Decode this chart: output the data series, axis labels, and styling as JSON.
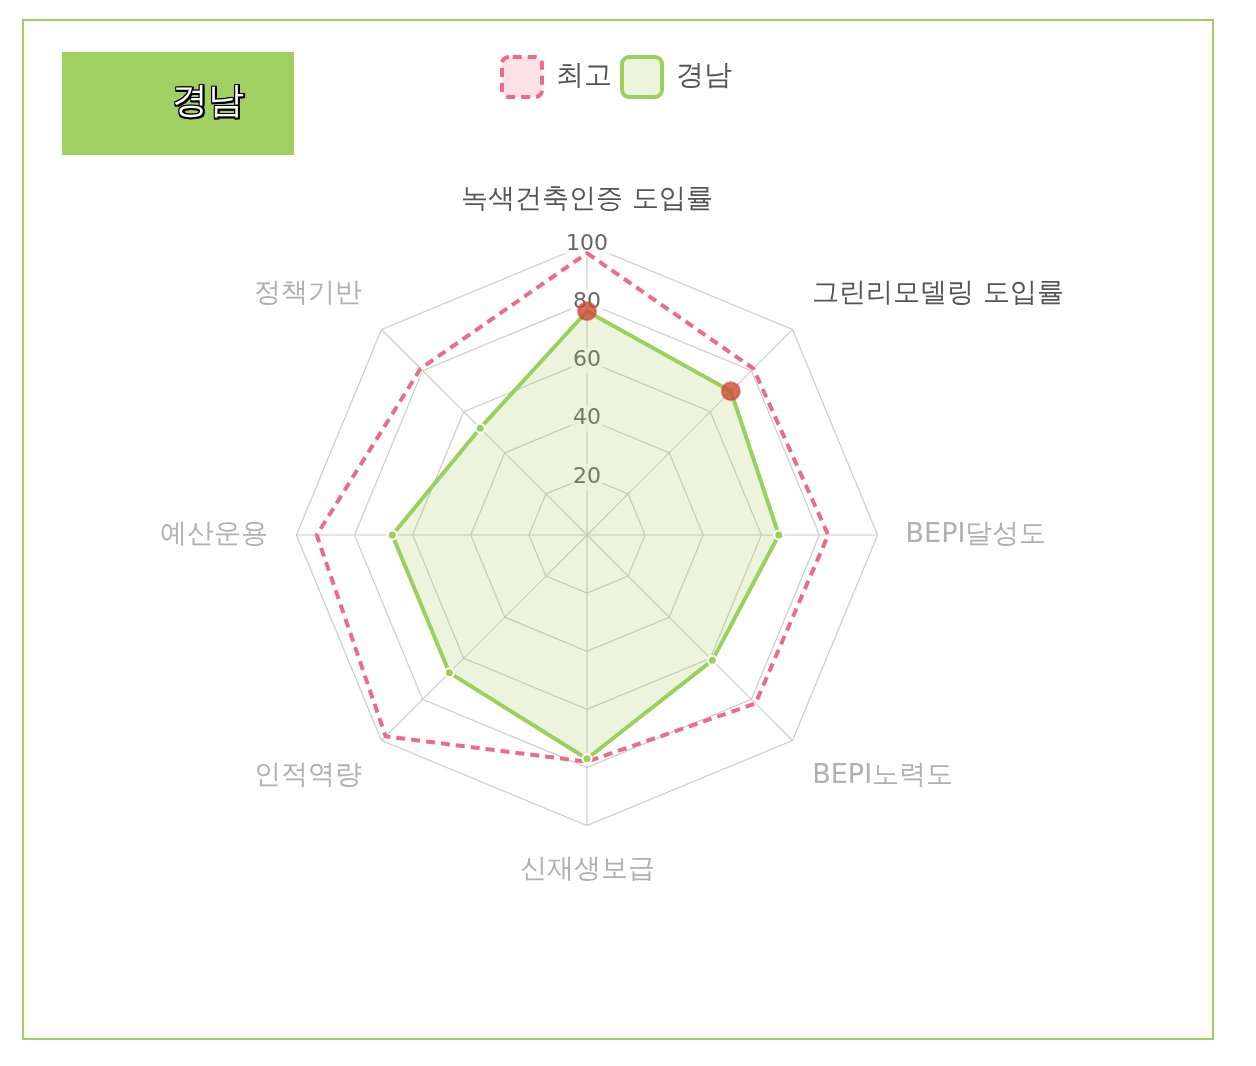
{
  "chart_data": {
    "type": "radar",
    "title": "경남",
    "categories": [
      "녹색건축인증 도입률",
      "그린리모델링 도입률",
      "BEPI달성도",
      "BEPI노력도",
      "신재생보급",
      "인적역량",
      "예산운용",
      "정책기반"
    ],
    "series": [
      {
        "name": "최고",
        "color": "#ee6b86",
        "line_style": "dashed",
        "marker": "none",
        "values": [
          97,
          81,
          83,
          82,
          78,
          98,
          93,
          81
        ]
      },
      {
        "name": "경남",
        "color": "#9ccf5b",
        "line_style": "solid",
        "marker": "circle",
        "values": [
          77,
          70,
          66,
          61,
          77,
          67,
          67,
          52
        ],
        "colors": [
          "#cc4a33",
          "#cc4a33",
          "#9ccf5b",
          "#9ccf5b",
          "#9ccf5b",
          "#9ccf5b",
          "#9ccf5b",
          "#9ccf5b"
        ]
      }
    ],
    "ylim": [
      0,
      100
    ],
    "yticks": [
      20,
      40,
      60,
      80,
      100
    ],
    "grid": true,
    "legend": "top"
  }
}
